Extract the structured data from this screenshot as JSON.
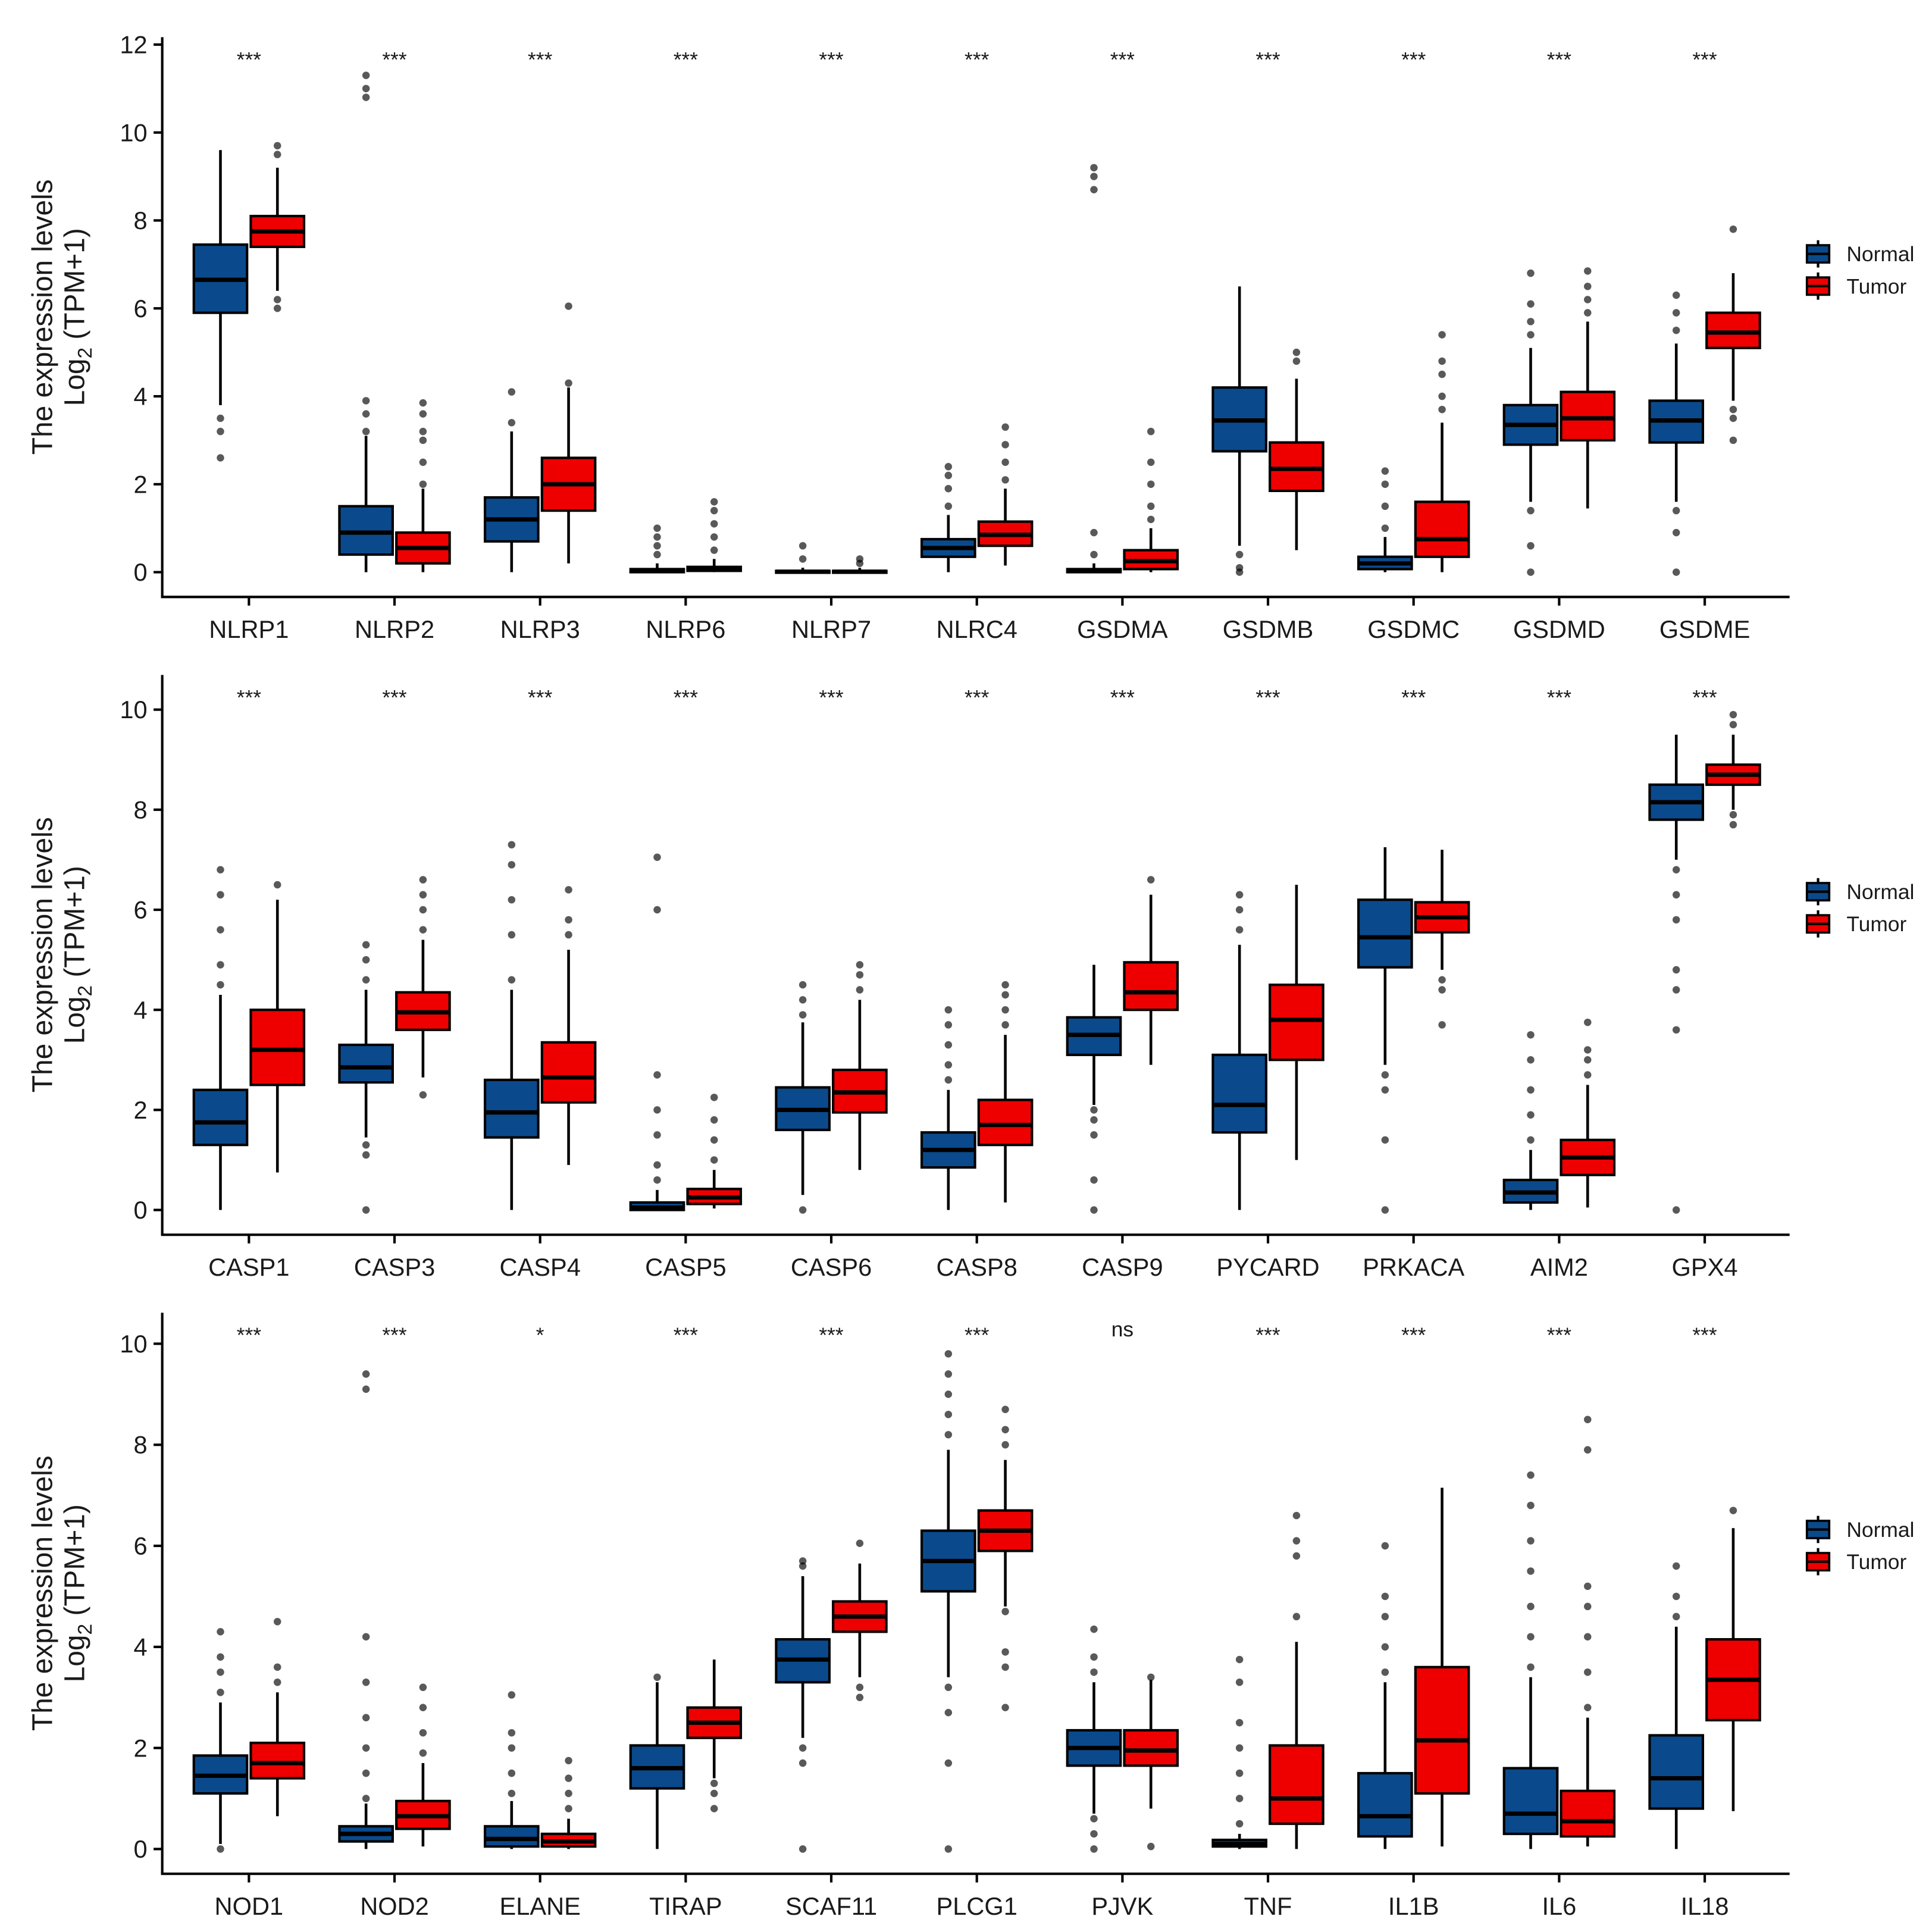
{
  "colors": {
    "Normal": "#0A4A8C",
    "Tumor": "#EE0000"
  },
  "stats_order": [
    "min",
    "q1",
    "median",
    "q3",
    "max"
  ],
  "chart_data": [
    {
      "type": "box",
      "ylabel_line1": "The expression levels",
      "ylabel_log": "Log",
      "ylabel_sub": "2",
      "ylabel_rest": " (TPM+1)",
      "ylim": [
        -0.55,
        12.2
      ],
      "yticks": [
        0,
        2,
        4,
        6,
        8,
        10,
        12
      ],
      "legend": [
        "Normal",
        "Tumor"
      ],
      "legend_position": "right",
      "categories": [
        "NLRP1",
        "NLRP2",
        "NLRP3",
        "NLRP6",
        "NLRP7",
        "NLRC4",
        "GSDMA",
        "GSDMB",
        "GSDMC",
        "GSDMD",
        "GSDME"
      ],
      "significance": [
        "***",
        "***",
        "***",
        "***",
        "***",
        "***",
        "***",
        "***",
        "***",
        "***",
        "***"
      ],
      "series": [
        {
          "name": "Normal",
          "stats": [
            [
              3.8,
              5.9,
              6.65,
              7.45,
              9.6
            ],
            [
              0,
              0.4,
              0.9,
              1.5,
              3.1
            ],
            [
              0,
              0.7,
              1.2,
              1.7,
              3.2
            ],
            [
              0,
              0,
              0.03,
              0.07,
              0.2
            ],
            [
              0,
              0,
              0.01,
              0.03,
              0.1
            ],
            [
              0,
              0.35,
              0.55,
              0.75,
              1.3
            ],
            [
              0,
              0,
              0.03,
              0.07,
              0.2
            ],
            [
              0.6,
              2.75,
              3.45,
              4.2,
              6.5
            ],
            [
              0,
              0.07,
              0.2,
              0.35,
              0.8
            ],
            [
              1.6,
              2.9,
              3.35,
              3.8,
              5.1
            ],
            [
              1.6,
              2.95,
              3.45,
              3.9,
              5.2
            ]
          ],
          "outliers": [
            [
              3.5,
              3.2,
              2.6
            ],
            [
              3.2,
              3.6,
              3.9,
              10.8,
              11.0,
              11.3
            ],
            [
              3.4,
              4.1
            ],
            [
              0.4,
              0.6,
              0.8,
              1.0
            ],
            [
              0.3,
              0.6
            ],
            [
              1.5,
              1.9,
              2.2,
              2.4
            ],
            [
              0.4,
              0.9,
              8.7,
              9.0,
              9.2
            ],
            [
              0.4,
              0.1,
              0
            ],
            [
              1.0,
              1.5,
              2.0,
              2.3
            ],
            [
              1.4,
              0.6,
              0,
              5.4,
              5.7,
              6.1,
              6.8
            ],
            [
              1.4,
              0.9,
              0,
              5.5,
              5.9,
              6.3
            ]
          ]
        },
        {
          "name": "Tumor",
          "stats": [
            [
              6.4,
              7.4,
              7.75,
              8.1,
              9.2
            ],
            [
              0,
              0.2,
              0.55,
              0.9,
              1.9
            ],
            [
              0.2,
              1.4,
              2.0,
              2.6,
              4.2
            ],
            [
              0,
              0.03,
              0.07,
              0.12,
              0.3
            ],
            [
              0,
              0,
              0.01,
              0.03,
              0.1
            ],
            [
              0.15,
              0.6,
              0.85,
              1.15,
              1.9
            ],
            [
              0,
              0.07,
              0.25,
              0.5,
              1.0
            ],
            [
              0.5,
              1.85,
              2.35,
              2.95,
              4.4
            ],
            [
              0,
              0.35,
              0.75,
              1.6,
              3.4
            ],
            [
              1.45,
              3.0,
              3.5,
              4.1,
              5.7
            ],
            [
              3.9,
              5.1,
              5.45,
              5.9,
              6.8
            ]
          ],
          "outliers": [
            [
              9.5,
              9.7,
              6.2,
              6.0
            ],
            [
              2.0,
              2.5,
              3.0,
              3.2,
              3.6,
              3.85
            ],
            [
              4.3,
              6.05
            ],
            [
              0.5,
              0.8,
              1.1,
              1.4,
              1.6
            ],
            [
              0.2,
              0.3
            ],
            [
              2.1,
              2.5,
              2.9,
              3.3
            ],
            [
              1.2,
              1.5,
              2.0,
              2.5,
              3.2
            ],
            [
              4.8,
              5.0
            ],
            [
              3.7,
              4.0,
              4.5,
              4.8,
              5.4
            ],
            [
              5.9,
              6.2,
              6.5,
              6.85
            ],
            [
              3.7,
              3.5,
              3.0,
              7.8
            ]
          ]
        }
      ]
    },
    {
      "type": "box",
      "ylabel_line1": "The expression levels",
      "ylabel_log": "Log",
      "ylabel_sub": "2",
      "ylabel_rest": " (TPM+1)",
      "ylim": [
        -0.5,
        10.7
      ],
      "yticks": [
        0,
        2,
        4,
        6,
        8,
        10
      ],
      "legend": [
        "Normal",
        "Tumor"
      ],
      "legend_position": "right",
      "categories": [
        "CASP1",
        "CASP3",
        "CASP4",
        "CASP5",
        "CASP6",
        "CASP8",
        "CASP9",
        "PYCARD",
        "PRKACA",
        "AIM2",
        "GPX4"
      ],
      "significance": [
        "***",
        "***",
        "***",
        "***",
        "***",
        "***",
        "***",
        "***",
        "***",
        "***",
        "***"
      ],
      "series": [
        {
          "name": "Normal",
          "stats": [
            [
              0,
              1.3,
              1.75,
              2.4,
              4.3
            ],
            [
              1.45,
              2.55,
              2.85,
              3.3,
              4.4
            ],
            [
              0,
              1.45,
              1.95,
              2.6,
              4.4
            ],
            [
              0,
              0,
              0.05,
              0.15,
              0.4
            ],
            [
              0.3,
              1.6,
              2.0,
              2.45,
              3.75
            ],
            [
              0,
              0.85,
              1.2,
              1.55,
              2.4
            ],
            [
              2.1,
              3.1,
              3.5,
              3.85,
              4.9
            ],
            [
              0,
              1.55,
              2.1,
              3.1,
              5.3
            ],
            [
              2.9,
              4.85,
              5.45,
              6.2,
              7.25
            ],
            [
              0,
              0.15,
              0.35,
              0.6,
              1.2
            ],
            [
              7.0,
              7.8,
              8.15,
              8.5,
              9.5
            ]
          ],
          "outliers": [
            [
              4.5,
              4.9,
              5.6,
              6.3,
              6.8
            ],
            [
              1.3,
              1.1,
              0,
              4.6,
              5.0,
              5.3
            ],
            [
              4.6,
              5.5,
              6.2,
              6.9,
              7.3
            ],
            [
              0.6,
              0.9,
              1.5,
              2.0,
              2.7,
              6.0,
              7.05
            ],
            [
              0,
              3.9,
              4.2,
              4.5
            ],
            [
              2.6,
              2.9,
              3.3,
              3.7,
              4.0
            ],
            [
              2.0,
              1.8,
              1.5,
              0.6,
              0
            ],
            [
              5.6,
              6.0,
              6.3
            ],
            [
              2.7,
              2.4,
              1.4,
              0
            ],
            [
              1.4,
              1.9,
              2.4,
              3.0,
              3.5
            ],
            [
              6.8,
              6.3,
              5.8,
              4.8,
              4.4,
              3.6,
              0
            ]
          ]
        },
        {
          "name": "Tumor",
          "stats": [
            [
              0.75,
              2.5,
              3.2,
              4.0,
              6.2
            ],
            [
              2.65,
              3.6,
              3.95,
              4.35,
              5.4
            ],
            [
              0.9,
              2.15,
              2.65,
              3.35,
              5.2
            ],
            [
              0.03,
              0.12,
              0.25,
              0.42,
              0.8
            ],
            [
              0.8,
              1.95,
              2.35,
              2.8,
              4.2
            ],
            [
              0.15,
              1.3,
              1.7,
              2.2,
              3.5
            ],
            [
              2.9,
              4.0,
              4.35,
              4.95,
              6.3
            ],
            [
              1.0,
              3.0,
              3.8,
              4.5,
              6.5
            ],
            [
              4.8,
              5.55,
              5.85,
              6.15,
              7.2
            ],
            [
              0.05,
              0.7,
              1.05,
              1.4,
              2.5
            ],
            [
              8.0,
              8.5,
              8.7,
              8.9,
              9.5
            ]
          ],
          "outliers": [
            [
              6.5
            ],
            [
              2.3,
              5.6,
              6.0,
              6.3,
              6.6
            ],
            [
              5.5,
              5.8,
              6.4
            ],
            [
              1.0,
              1.4,
              1.8,
              2.25
            ],
            [
              4.4,
              4.7,
              4.9
            ],
            [
              3.7,
              4.0,
              4.3,
              4.5
            ],
            [
              6.6
            ],
            [],
            [
              4.6,
              4.4,
              3.7
            ],
            [
              2.7,
              3.0,
              3.2,
              3.75
            ],
            [
              7.9,
              7.7,
              9.7,
              9.9
            ]
          ]
        }
      ]
    },
    {
      "type": "box",
      "ylabel_line1": "The expression levels",
      "ylabel_log": "Log",
      "ylabel_sub": "2",
      "ylabel_rest": " (TPM+1)",
      "ylim": [
        -0.5,
        10.6
      ],
      "yticks": [
        0,
        2,
        4,
        6,
        8,
        10
      ],
      "legend": [
        "Normal",
        "Tumor"
      ],
      "legend_position": "right",
      "categories": [
        "NOD1",
        "NOD2",
        "ELANE",
        "TIRAP",
        "SCAF11",
        "PLCG1",
        "PJVK",
        "TNF",
        "IL1B",
        "IL6",
        "IL18"
      ],
      "significance": [
        "***",
        "***",
        "*",
        "***",
        "***",
        "***",
        "ns",
        "***",
        "***",
        "***",
        "***"
      ],
      "series": [
        {
          "name": "Normal",
          "stats": [
            [
              0.1,
              1.1,
              1.45,
              1.85,
              2.9
            ],
            [
              0,
              0.15,
              0.3,
              0.45,
              0.9
            ],
            [
              0,
              0.05,
              0.2,
              0.45,
              0.95
            ],
            [
              0,
              1.2,
              1.6,
              2.05,
              3.3
            ],
            [
              2.2,
              3.3,
              3.75,
              4.15,
              5.4
            ],
            [
              3.4,
              5.1,
              5.7,
              6.3,
              7.9
            ],
            [
              0.7,
              1.65,
              2.0,
              2.35,
              3.3
            ],
            [
              0,
              0.05,
              0.1,
              0.18,
              0.3
            ],
            [
              0,
              0.25,
              0.65,
              1.5,
              3.3
            ],
            [
              0,
              0.3,
              0.7,
              1.6,
              3.4
            ],
            [
              0,
              0.8,
              1.4,
              2.25,
              4.4
            ]
          ],
          "outliers": [
            [
              0,
              3.1,
              3.5,
              3.8,
              4.3
            ],
            [
              1.0,
              1.5,
              2.0,
              2.6,
              3.3,
              4.2,
              9.1,
              9.4
            ],
            [
              1.1,
              1.5,
              2.0,
              2.3,
              3.05
            ],
            [
              3.4
            ],
            [
              2.0,
              1.7,
              0,
              5.6,
              5.7
            ],
            [
              3.2,
              2.7,
              1.7,
              0,
              8.2,
              8.6,
              9.0,
              9.4,
              9.8
            ],
            [
              0.6,
              0.3,
              0,
              3.5,
              3.8,
              4.35
            ],
            [
              0.5,
              1.0,
              1.5,
              2.0,
              2.5,
              3.3,
              3.75
            ],
            [
              3.5,
              4.0,
              4.6,
              5.0,
              6.0
            ],
            [
              3.6,
              4.2,
              4.8,
              5.5,
              6.1,
              6.8,
              7.4
            ],
            [
              4.6,
              5.0,
              5.6
            ]
          ]
        },
        {
          "name": "Tumor",
          "stats": [
            [
              0.65,
              1.4,
              1.7,
              2.1,
              3.1
            ],
            [
              0.05,
              0.4,
              0.65,
              0.95,
              1.7
            ],
            [
              0,
              0.05,
              0.15,
              0.3,
              0.6
            ],
            [
              1.4,
              2.2,
              2.5,
              2.8,
              3.75
            ],
            [
              3.4,
              4.3,
              4.6,
              4.9,
              5.65
            ],
            [
              4.8,
              5.9,
              6.3,
              6.7,
              7.7
            ],
            [
              0.8,
              1.65,
              1.95,
              2.35,
              3.35
            ],
            [
              0,
              0.5,
              1.0,
              2.05,
              4.1
            ],
            [
              0.05,
              1.1,
              2.15,
              3.6,
              7.15
            ],
            [
              0.05,
              0.25,
              0.55,
              1.15,
              2.6
            ],
            [
              0.75,
              2.55,
              3.35,
              4.15,
              6.35
            ]
          ],
          "outliers": [
            [
              3.3,
              3.6,
              4.5
            ],
            [
              1.9,
              2.3,
              2.8,
              3.2
            ],
            [
              0.8,
              1.1,
              1.4,
              1.75
            ],
            [
              1.3,
              1.1,
              0.8
            ],
            [
              3.2,
              3.0,
              6.05
            ],
            [
              4.7,
              3.9,
              3.6,
              2.8,
              8.0,
              8.3,
              8.7
            ],
            [
              0.05,
              3.4
            ],
            [
              4.6,
              5.8,
              6.1,
              6.6
            ],
            [],
            [
              2.8,
              3.5,
              4.2,
              4.8,
              5.2,
              7.9,
              8.5
            ],
            [
              6.7
            ]
          ]
        }
      ]
    }
  ]
}
